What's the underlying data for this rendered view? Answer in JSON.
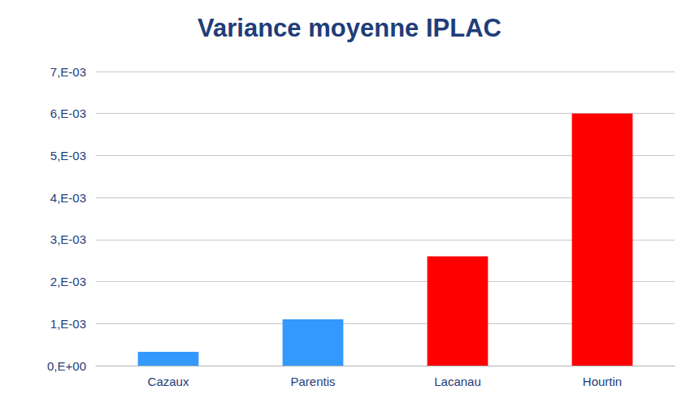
{
  "chart_data": {
    "type": "bar",
    "title": "Variance moyenne IPLAC",
    "categories": [
      "Cazaux",
      "Parentis",
      "Lacanau",
      "Hourtin"
    ],
    "values": [
      0.00033,
      0.0011,
      0.0026,
      0.006
    ],
    "colors": [
      "#3399ff",
      "#3399ff",
      "#ff0000",
      "#ff0000"
    ],
    "ylim": [
      0,
      0.007
    ],
    "yticks": [
      {
        "value": 0,
        "label": "0,E+00"
      },
      {
        "value": 0.001,
        "label": "1,E-03"
      },
      {
        "value": 0.002,
        "label": "2,E-03"
      },
      {
        "value": 0.003,
        "label": "3,E-03"
      },
      {
        "value": 0.004,
        "label": "4,E-03"
      },
      {
        "value": 0.005,
        "label": "5,E-03"
      },
      {
        "value": 0.006,
        "label": "6,E-03"
      },
      {
        "value": 0.007,
        "label": "7,E-03"
      }
    ],
    "grid": true
  }
}
